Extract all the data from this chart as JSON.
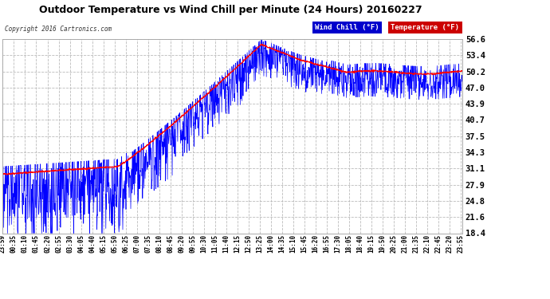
{
  "title": "Outdoor Temperature vs Wind Chill per Minute (24 Hours) 20160227",
  "copyright": "Copyright 2016 Cartronics.com",
  "legend_wind_chill": "Wind Chill (°F)",
  "legend_temperature": "Temperature (°F)",
  "y_ticks": [
    18.4,
    21.6,
    24.8,
    27.9,
    31.1,
    34.3,
    37.5,
    40.7,
    43.9,
    47.0,
    50.2,
    53.4,
    56.6
  ],
  "ylim": [
    18.4,
    56.6
  ],
  "plot_bg_color": "#ffffff",
  "grid_color": "#bbbbbb",
  "wind_chill_color": "#0000ff",
  "temp_color": "#ff0000",
  "fig_bg_color": "#ffffff",
  "n_minutes": 1440,
  "seed": 42,
  "x_labels": [
    "23:59",
    "00:35",
    "01:10",
    "01:45",
    "02:20",
    "02:55",
    "03:30",
    "04:05",
    "04:40",
    "05:15",
    "05:50",
    "06:25",
    "07:00",
    "07:35",
    "08:10",
    "08:45",
    "09:20",
    "09:55",
    "10:30",
    "11:05",
    "11:40",
    "12:15",
    "12:50",
    "13:25",
    "14:00",
    "14:35",
    "15:10",
    "15:45",
    "16:20",
    "16:55",
    "17:30",
    "18:05",
    "18:40",
    "19:15",
    "19:50",
    "20:25",
    "21:00",
    "21:35",
    "22:10",
    "22:45",
    "23:20",
    "23:55"
  ]
}
